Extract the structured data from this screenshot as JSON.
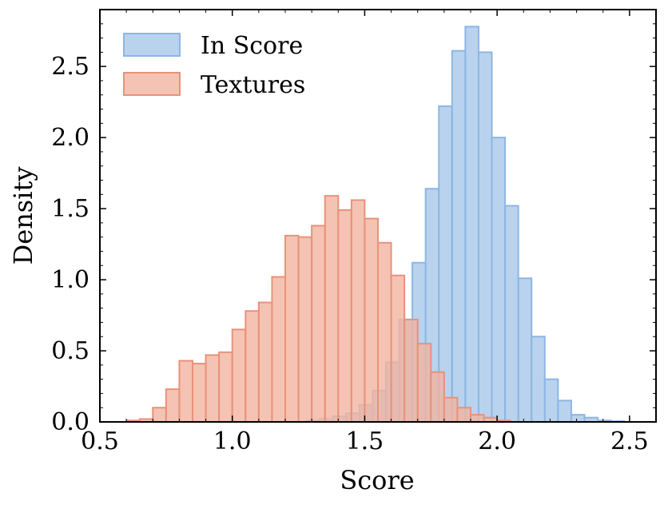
{
  "chart_data": {
    "type": "histogram",
    "title": "",
    "xlabel": "Score",
    "ylabel": "Density",
    "xlim": [
      0.5,
      2.6
    ],
    "ylim": [
      0.0,
      2.9
    ],
    "xticks": [
      0.5,
      1.0,
      1.5,
      2.0,
      2.5
    ],
    "xtick_labels": [
      "0.5",
      "1.0",
      "1.5",
      "2.0",
      "2.5"
    ],
    "yticks": [
      0.0,
      0.5,
      1.0,
      1.5,
      2.0,
      2.5
    ],
    "ytick_labels": [
      "0.0",
      "0.5",
      "1.0",
      "1.5",
      "2.0",
      "2.5"
    ],
    "grid": false,
    "legend_position": "top-left",
    "series": [
      {
        "name": "In Score",
        "fill": "#a8c8ea",
        "edge": "#8db6e2",
        "bins": [
          {
            "x0": 1.28,
            "x1": 1.33,
            "y": 0.01
          },
          {
            "x0": 1.33,
            "x1": 1.38,
            "y": 0.02
          },
          {
            "x0": 1.38,
            "x1": 1.43,
            "y": 0.04
          },
          {
            "x0": 1.43,
            "x1": 1.48,
            "y": 0.06
          },
          {
            "x0": 1.48,
            "x1": 1.53,
            "y": 0.12
          },
          {
            "x0": 1.53,
            "x1": 1.58,
            "y": 0.22
          },
          {
            "x0": 1.58,
            "x1": 1.63,
            "y": 0.42
          },
          {
            "x0": 1.63,
            "x1": 1.68,
            "y": 0.72
          },
          {
            "x0": 1.68,
            "x1": 1.73,
            "y": 1.12
          },
          {
            "x0": 1.73,
            "x1": 1.78,
            "y": 1.64
          },
          {
            "x0": 1.78,
            "x1": 1.83,
            "y": 2.22
          },
          {
            "x0": 1.83,
            "x1": 1.88,
            "y": 2.61
          },
          {
            "x0": 1.88,
            "x1": 1.93,
            "y": 2.78
          },
          {
            "x0": 1.93,
            "x1": 1.98,
            "y": 2.6
          },
          {
            "x0": 1.98,
            "x1": 2.03,
            "y": 2.0
          },
          {
            "x0": 2.03,
            "x1": 2.08,
            "y": 1.52
          },
          {
            "x0": 2.08,
            "x1": 2.13,
            "y": 1.01
          },
          {
            "x0": 2.13,
            "x1": 2.18,
            "y": 0.6
          },
          {
            "x0": 2.18,
            "x1": 2.23,
            "y": 0.3
          },
          {
            "x0": 2.23,
            "x1": 2.28,
            "y": 0.15
          },
          {
            "x0": 2.28,
            "x1": 2.33,
            "y": 0.05
          },
          {
            "x0": 2.33,
            "x1": 2.38,
            "y": 0.03
          },
          {
            "x0": 2.38,
            "x1": 2.43,
            "y": 0.01
          },
          {
            "x0": 2.43,
            "x1": 2.48,
            "y": 0.005
          }
        ]
      },
      {
        "name": "Textures",
        "fill": "#f3b4a0",
        "edge": "#e8927a",
        "bins": [
          {
            "x0": 0.6,
            "x1": 0.65,
            "y": 0.01
          },
          {
            "x0": 0.65,
            "x1": 0.7,
            "y": 0.02
          },
          {
            "x0": 0.7,
            "x1": 0.75,
            "y": 0.1
          },
          {
            "x0": 0.75,
            "x1": 0.8,
            "y": 0.23
          },
          {
            "x0": 0.8,
            "x1": 0.85,
            "y": 0.43
          },
          {
            "x0": 0.85,
            "x1": 0.9,
            "y": 0.41
          },
          {
            "x0": 0.9,
            "x1": 0.95,
            "y": 0.47
          },
          {
            "x0": 0.95,
            "x1": 1.0,
            "y": 0.49
          },
          {
            "x0": 1.0,
            "x1": 1.05,
            "y": 0.65
          },
          {
            "x0": 1.05,
            "x1": 1.1,
            "y": 0.78
          },
          {
            "x0": 1.1,
            "x1": 1.15,
            "y": 0.84
          },
          {
            "x0": 1.15,
            "x1": 1.2,
            "y": 1.02
          },
          {
            "x0": 1.2,
            "x1": 1.25,
            "y": 1.31
          },
          {
            "x0": 1.25,
            "x1": 1.3,
            "y": 1.3
          },
          {
            "x0": 1.3,
            "x1": 1.35,
            "y": 1.38
          },
          {
            "x0": 1.35,
            "x1": 1.4,
            "y": 1.59
          },
          {
            "x0": 1.4,
            "x1": 1.45,
            "y": 1.49
          },
          {
            "x0": 1.45,
            "x1": 1.5,
            "y": 1.56
          },
          {
            "x0": 1.5,
            "x1": 1.55,
            "y": 1.43
          },
          {
            "x0": 1.55,
            "x1": 1.6,
            "y": 1.26
          },
          {
            "x0": 1.6,
            "x1": 1.65,
            "y": 1.03
          },
          {
            "x0": 1.65,
            "x1": 1.7,
            "y": 0.72
          },
          {
            "x0": 1.7,
            "x1": 1.75,
            "y": 0.55
          },
          {
            "x0": 1.75,
            "x1": 1.8,
            "y": 0.35
          },
          {
            "x0": 1.8,
            "x1": 1.85,
            "y": 0.17
          },
          {
            "x0": 1.85,
            "x1": 1.9,
            "y": 0.1
          },
          {
            "x0": 1.9,
            "x1": 1.95,
            "y": 0.05
          },
          {
            "x0": 1.95,
            "x1": 2.0,
            "y": 0.03
          },
          {
            "x0": 2.0,
            "x1": 2.05,
            "y": 0.01
          }
        ]
      }
    ]
  }
}
